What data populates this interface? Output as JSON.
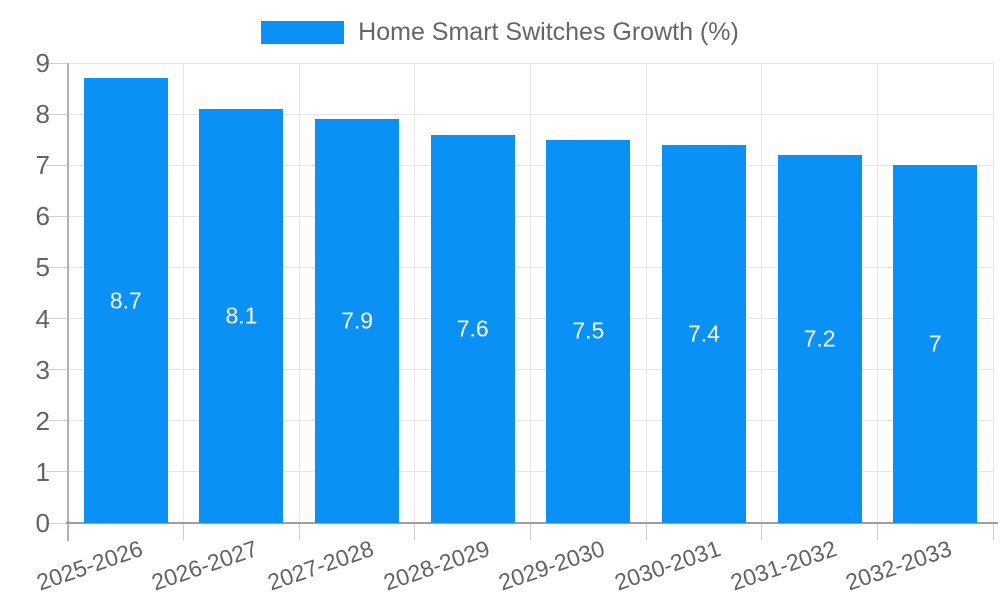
{
  "legend": {
    "label": "Home Smart Switches Growth (%)"
  },
  "chart_data": {
    "type": "bar",
    "title": "Home Smart Switches Growth (%)",
    "categories": [
      "2025-2026",
      "2026-2027",
      "2027-2028",
      "2028-2029",
      "2029-2030",
      "2030-2031",
      "2031-2032",
      "2032-2033"
    ],
    "values": [
      8.7,
      8.1,
      7.9,
      7.6,
      7.5,
      7.4,
      7.2,
      7
    ],
    "value_labels": [
      "8.7",
      "8.1",
      "7.9",
      "7.6",
      "7.5",
      "7.4",
      "7.2",
      "7"
    ],
    "xlabel": "",
    "ylabel": "",
    "ylim": [
      0,
      9
    ],
    "yticks": [
      0,
      1,
      2,
      3,
      4,
      5,
      6,
      7,
      8,
      9
    ],
    "grid": true,
    "legend_position": "top",
    "bar_color": "#0991f5",
    "value_label_color": "#ffffff",
    "axis_text_color": "#636363",
    "gridline_color": "#e6e6e6"
  }
}
